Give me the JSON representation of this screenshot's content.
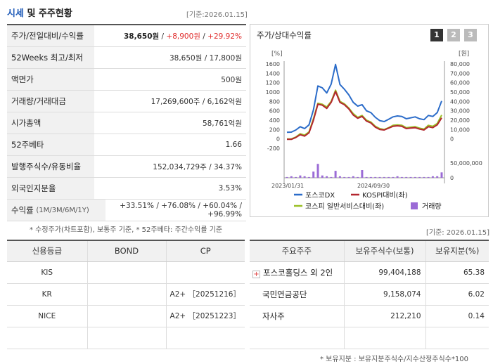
{
  "header": {
    "title_part1": "시세",
    "title_part2": " 및 주주현황",
    "date": "[기준:2026.01.15]"
  },
  "summary": [
    {
      "label": "주가/전일대비/수익률",
      "price": "38,650원",
      "change": "+8,900원",
      "rate": "+29.92%"
    },
    {
      "label": "52Weeks 최고/최저",
      "value": "38,650원 / 17,800원"
    },
    {
      "label": "액면가",
      "value": "500원"
    },
    {
      "label": "거래량/거래대금",
      "value": "17,269,600주 / 6,162억원"
    },
    {
      "label": "시가총액",
      "value": "58,761억원"
    },
    {
      "label": "52주베타",
      "value": "1.66"
    },
    {
      "label": "발행주식수/유동비율",
      "value": "152,034,729주 / 34.37%"
    },
    {
      "label": "외국인지분율",
      "value": "3.53%"
    },
    {
      "label": "수익률",
      "label_sub": "(1M/3M/6M/1Y)",
      "r1": "+33.51%",
      "r2": "+76.08%",
      "r3": "+60.04%",
      "r4": "+96.99%"
    }
  ],
  "summary_note": "* 수정주가(차트포함), 보통주 기준, * 52주베타: 주간수익률 기준",
  "chart_panel": {
    "title": "주가/상대수익률",
    "tabs": [
      "1",
      "2",
      "3"
    ],
    "left_unit": "[%]",
    "right_unit": "[원]",
    "volume_unit": "50,000,000",
    "volume_zero": "0"
  },
  "chart_data": {
    "type": "line",
    "x_ticks": [
      "2023/01/31",
      "2024/09/30"
    ],
    "y_left_ticks": [
      "1600",
      "1400",
      "1200",
      "1000",
      "800",
      "600",
      "400",
      "200",
      "0",
      "-200"
    ],
    "y_right_ticks": [
      "80,000",
      "70,000",
      "60,000",
      "50,000",
      "40,000",
      "30,000",
      "20,000",
      "10,000",
      "0"
    ],
    "y_left_range": [
      -200,
      1600
    ],
    "series": [
      {
        "name": "포스코DX",
        "color": "#2b6cc9",
        "values": [
          140,
          145,
          190,
          260,
          220,
          300,
          620,
          1130,
          1090,
          980,
          1170,
          1590,
          1160,
          1060,
          940,
          780,
          700,
          730,
          600,
          560,
          460,
          390,
          370,
          420,
          470,
          490,
          480,
          430,
          450,
          470,
          430,
          410,
          500,
          480,
          560,
          810
        ]
      },
      {
        "name": "KOSPI대비(좌)",
        "color": "#b3262f",
        "values": [
          -10,
          -10,
          30,
          90,
          60,
          130,
          400,
          740,
          720,
          650,
          780,
          1010,
          780,
          730,
          640,
          510,
          440,
          480,
          380,
          340,
          250,
          200,
          190,
          230,
          270,
          280,
          270,
          220,
          230,
          240,
          210,
          190,
          260,
          240,
          300,
          450
        ]
      },
      {
        "name": "코스피 일반서비스대비(좌)",
        "color": "#9abf25",
        "values": [
          0,
          0,
          40,
          110,
          80,
          150,
          430,
          760,
          740,
          680,
          800,
          1040,
          800,
          750,
          660,
          540,
          460,
          500,
          400,
          360,
          270,
          220,
          200,
          240,
          290,
          300,
          290,
          240,
          250,
          260,
          230,
          210,
          290,
          270,
          330,
          510
        ]
      }
    ],
    "volume": {
      "name": "거래량",
      "color": "#9b6bd6",
      "values": [
        1,
        2,
        1,
        3,
        2,
        1,
        8,
        18,
        3,
        2,
        1,
        9,
        2,
        1,
        1,
        2,
        1,
        10,
        1,
        1,
        1,
        1,
        1,
        1,
        1,
        2,
        1,
        1,
        1,
        1,
        1,
        1,
        1,
        2,
        2,
        7
      ]
    }
  },
  "date2": "[기준: 2026.01.15]",
  "credit": {
    "headers": [
      "신용등급",
      "BOND",
      "CP"
    ],
    "rows": [
      {
        "agency": "KIS",
        "bond": "",
        "cp": ""
      },
      {
        "agency": "KR",
        "bond": "",
        "cp": "A2+ ［20251216］"
      },
      {
        "agency": "NICE",
        "bond": "",
        "cp": "A2+ ［20251223］"
      }
    ]
  },
  "holders": {
    "headers": [
      "주요주주",
      "보유주식수(보통)",
      "보유지분(%)"
    ],
    "rows": [
      {
        "name": "포스코홀딩스 외 2인",
        "shares": "99,404,188",
        "pct": "65.38",
        "expandable": true
      },
      {
        "name": "국민연금공단",
        "shares": "9,158,074",
        "pct": "6.02",
        "expandable": false
      },
      {
        "name": "자사주",
        "shares": "212,210",
        "pct": "0.14",
        "expandable": false
      }
    ]
  },
  "holders_note": "* 보유지분 : 보유지분주식수/지수산정주식수*100"
}
